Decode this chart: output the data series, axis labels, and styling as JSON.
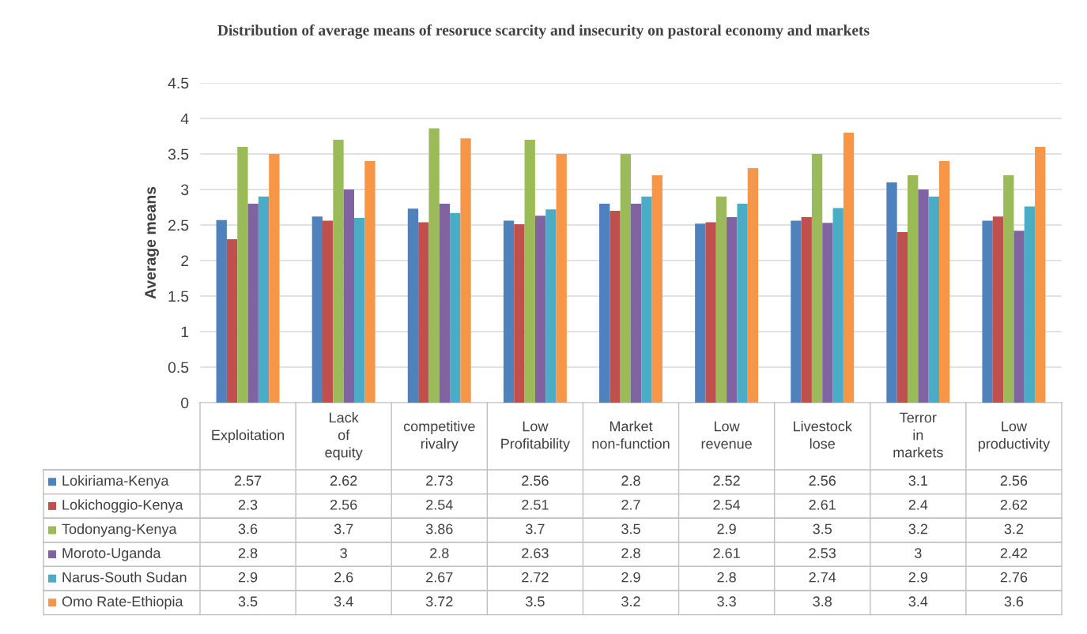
{
  "chart_data": {
    "type": "bar",
    "title": "Distribution of average means of resoruce scarcity and insecurity on pastoral economy and markets",
    "ylabel": "Average means",
    "categories": [
      "Exploitation",
      "Lack of equity",
      "competitive rivalry",
      "Low Profitability",
      "Market non-function",
      "Low revenue",
      "Livestock lose",
      "Terror in markets",
      "Low productivity"
    ],
    "series": [
      {
        "name": "Lokiriama-Kenya",
        "color": "#4f81bd",
        "values": [
          2.57,
          2.62,
          2.73,
          2.56,
          2.8,
          2.52,
          2.56,
          3.1,
          2.56
        ]
      },
      {
        "name": "Lokichoggio-Kenya",
        "color": "#c0504d",
        "values": [
          2.3,
          2.56,
          2.54,
          2.51,
          2.7,
          2.54,
          2.61,
          2.4,
          2.62
        ]
      },
      {
        "name": "Todonyang-Kenya",
        "color": "#9bbb59",
        "values": [
          3.6,
          3.7,
          3.86,
          3.7,
          3.5,
          2.9,
          3.5,
          3.2,
          3.2
        ]
      },
      {
        "name": "Moroto-Uganda",
        "color": "#8064a2",
        "values": [
          2.8,
          3,
          2.8,
          2.63,
          2.8,
          2.61,
          2.53,
          3,
          2.42
        ]
      },
      {
        "name": "Narus-South Sudan",
        "color": "#4bacc6",
        "values": [
          2.9,
          2.6,
          2.67,
          2.72,
          2.9,
          2.8,
          2.74,
          2.9,
          2.76
        ]
      },
      {
        "name": "Omo Rate-Ethiopia",
        "color": "#f79646",
        "values": [
          3.5,
          3.4,
          3.72,
          3.5,
          3.2,
          3.3,
          3.8,
          3.4,
          3.6
        ]
      }
    ],
    "ylim": [
      0,
      4.5
    ],
    "yticks": [
      0,
      0.5,
      1,
      1.5,
      2,
      2.5,
      3,
      3.5,
      4,
      4.5
    ],
    "grid": "y",
    "legend": "bottom",
    "data_labels": true
  }
}
